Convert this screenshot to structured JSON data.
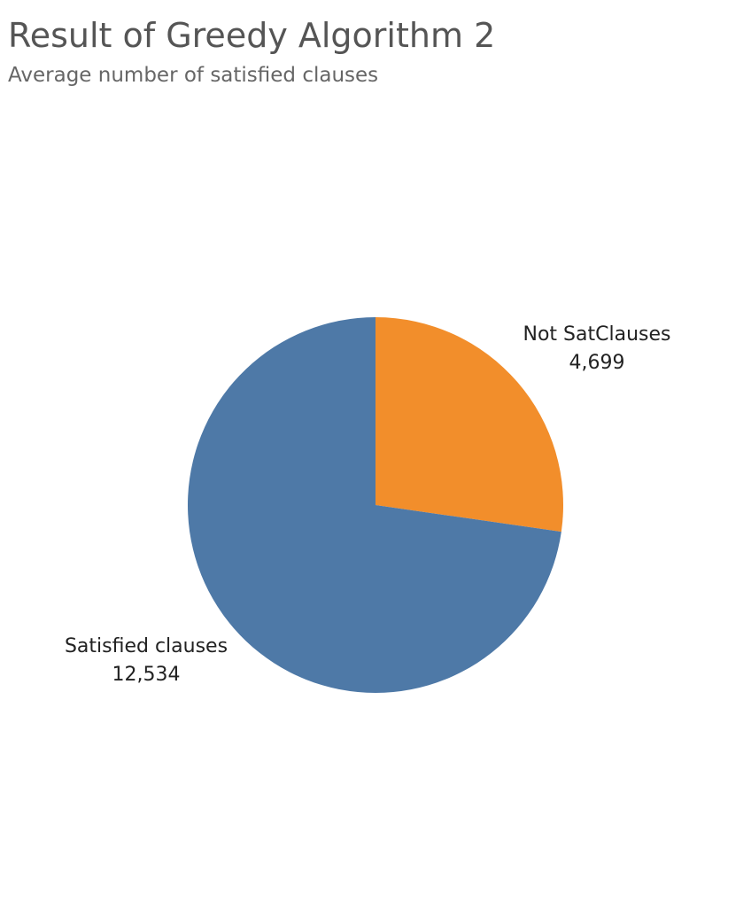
{
  "chart_data": {
    "type": "pie",
    "title": "Result of Greedy Algorithm 2",
    "subtitle": "Average number of satisfied clauses",
    "slices": [
      {
        "name": "Not SatClauses",
        "value": 4699,
        "value_label": "4,699",
        "color": "#f28e2b"
      },
      {
        "name": "Satisfied clauses",
        "value": 12534,
        "value_label": "12,534",
        "color": "#4e79a7"
      }
    ],
    "start": "12 o'clock",
    "direction": "clockwise"
  }
}
